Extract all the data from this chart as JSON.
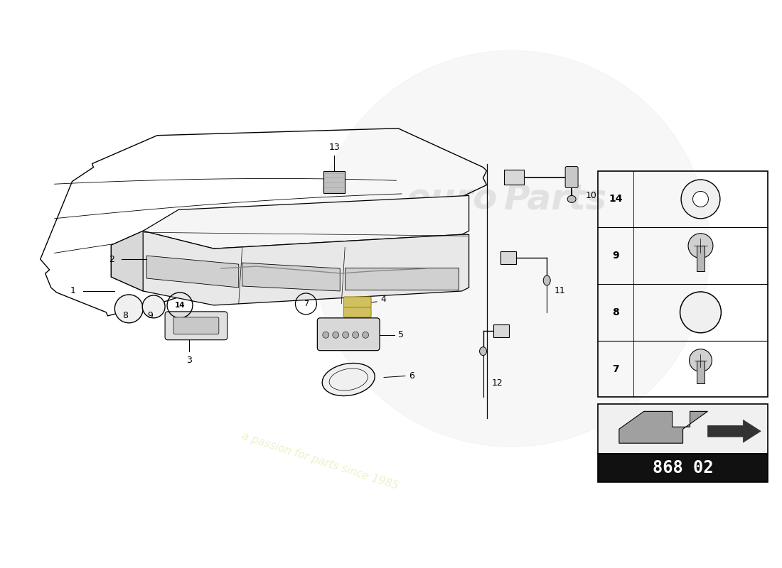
{
  "background_color": "#ffffff",
  "line_color": "#000000",
  "watermark_text": "a passion for parts since 1985",
  "watermark_color": "#f0f0c8",
  "part_number_box": "868 02",
  "pn_box_bg": "#111111",
  "pn_box_text_color": "#ffffff",
  "accent_color": "#d4af00"
}
